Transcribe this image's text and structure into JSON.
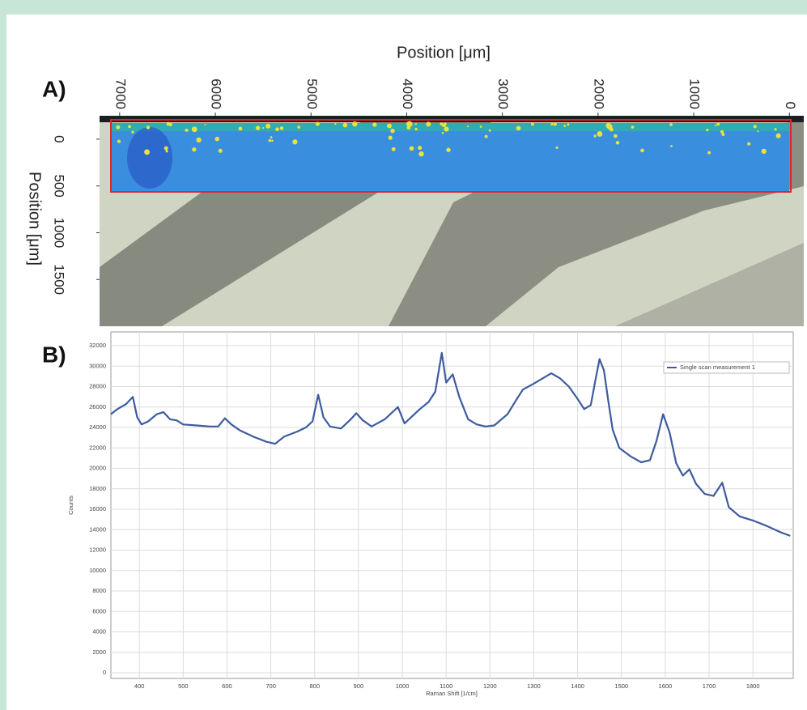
{
  "chart_data": [
    {
      "type": "image",
      "label": "A)",
      "xlabel": "Position [μm]",
      "ylabel": "Position [μm]",
      "xlim": [
        7210,
        -150
      ],
      "xticks": [
        7000,
        6000,
        5000,
        4000,
        3000,
        2000,
        1000,
        0
      ],
      "ylim": [
        -250,
        2000
      ],
      "yticks": [
        0,
        500,
        1000,
        1500
      ]
    },
    {
      "type": "line",
      "label": "B)",
      "xlabel": "Raman Shift [1/cm]",
      "ylabel": "Counts",
      "xlim": [
        335,
        1892
      ],
      "xticks": [
        400,
        500,
        600,
        700,
        800,
        900,
        1000,
        1100,
        1200,
        1300,
        1400,
        1500,
        1600,
        1700,
        1800
      ],
      "ylim": [
        -550,
        33350
      ],
      "yticks": [
        0,
        2000,
        4000,
        6000,
        8000,
        10000,
        12000,
        14000,
        16000,
        18000,
        20000,
        22000,
        24000,
        26000,
        28000,
        30000,
        32000
      ],
      "grid": true,
      "legend": "upper right",
      "series": [
        {
          "name": "Single scan measurement 1",
          "color": "#3d5c9e",
          "x": [
            335,
            350,
            370,
            385,
            395,
            405,
            420,
            440,
            455,
            470,
            485,
            500,
            530,
            560,
            580,
            595,
            610,
            630,
            660,
            690,
            710,
            730,
            760,
            780,
            795,
            808,
            820,
            835,
            860,
            880,
            895,
            910,
            930,
            960,
            990,
            1005,
            1020,
            1040,
            1060,
            1075,
            1090,
            1100,
            1115,
            1130,
            1150,
            1170,
            1190,
            1210,
            1240,
            1260,
            1275,
            1300,
            1320,
            1340,
            1360,
            1380,
            1400,
            1415,
            1430,
            1440,
            1450,
            1460,
            1470,
            1480,
            1495,
            1520,
            1545,
            1565,
            1580,
            1595,
            1610,
            1625,
            1640,
            1655,
            1670,
            1690,
            1710,
            1730,
            1745,
            1770,
            1800,
            1830,
            1860,
            1885
          ],
          "values": [
            25300,
            25800,
            26300,
            27000,
            25000,
            24300,
            24600,
            25300,
            25500,
            24800,
            24700,
            24300,
            24200,
            24100,
            24100,
            24900,
            24300,
            23700,
            23100,
            22600,
            22400,
            23100,
            23600,
            24000,
            24600,
            27200,
            25000,
            24100,
            23900,
            24700,
            25400,
            24700,
            24100,
            24800,
            26000,
            24400,
            25000,
            25800,
            26500,
            27500,
            31300,
            28400,
            29200,
            27000,
            24800,
            24300,
            24100,
            24200,
            25300,
            26700,
            27700,
            28300,
            28800,
            29300,
            28800,
            28000,
            26800,
            25800,
            26200,
            28500,
            30700,
            29600,
            26600,
            23800,
            22000,
            21200,
            20600,
            20800,
            22700,
            25300,
            23500,
            20500,
            19300,
            19900,
            18500,
            17500,
            17300,
            18600,
            16200,
            15300,
            14900,
            14400,
            13800,
            13400
          ]
        }
      ]
    }
  ]
}
